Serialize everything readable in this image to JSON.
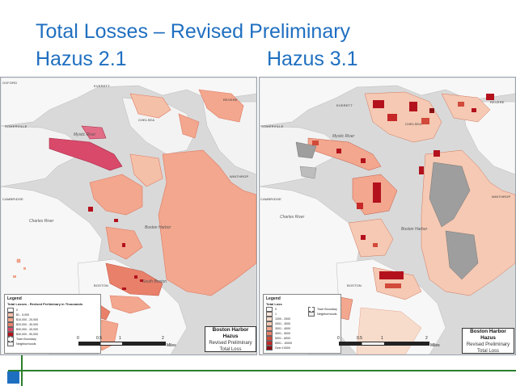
{
  "title": {
    "line1": "Total Losses – Revised Preliminary",
    "left_version": "Hazus 2.1",
    "right_version": "Hazus 3.1"
  },
  "colors": {
    "title": "#1f6fc0",
    "water": "#d9d9d9",
    "land": "#f7f7f7",
    "loss_light": "#f2b39a",
    "loss_mid": "#e8806a",
    "loss_dark": "#b3121d",
    "loss_magenta": "#d8496a",
    "no_data_gray": "#9e9e9e"
  },
  "left_map": {
    "places": [
      "OXFORD",
      "SOMERVILLE",
      "EVERETT",
      "CHELSEA",
      "REVERE",
      "WINTHROP",
      "CAMBRIDGE",
      "BOSTON"
    ],
    "water_labels": [
      "Mystic River",
      "Charles River",
      "Boston Harbor",
      "South Boston"
    ],
    "legend": {
      "title": "Legend",
      "subtitle": "Total Losses - Revised Preliminary in Thousands",
      "items": [
        "0",
        "$1 - 5,000",
        "$10,000 - 20,000",
        "$20,000 - 30,000",
        "$30,000 - 40,000",
        "$40,000 - 50,000",
        "Town Boundary",
        "Neighborhoods"
      ]
    },
    "scale": [
      "0",
      "0.5",
      "1",
      "2",
      "Miles"
    ],
    "box": {
      "title": "Boston Harbor Hazus",
      "line2": "Revised Preliminary",
      "line3": "Total Loss"
    }
  },
  "right_map": {
    "places": [
      "EVERETT",
      "CHELSEA",
      "REVERE",
      "SOMERVILLE",
      "WINTHROP",
      "CAMBRIDGE",
      "BOSTON"
    ],
    "water_labels": [
      "Mystic River",
      "Charles River",
      "Boston Harbor"
    ],
    "legend": {
      "title": "Legend",
      "subtitle": "Total Loss",
      "items": [
        "0",
        "1",
        "1000 - 2000",
        "2001 - 3000",
        "3001 - 4000",
        "4001 - 5000",
        "5001 - 6000",
        "6001 - 10000",
        "Over 10000"
      ],
      "extra": [
        "Town Boundary",
        "Neighborhoods"
      ]
    },
    "scale": [
      "0",
      "0.5",
      "1",
      "2",
      "Miles"
    ],
    "box": {
      "title": "Boston Harbor Hazus",
      "line2": "Revised Preliminary",
      "line3": "Total Loss"
    }
  }
}
